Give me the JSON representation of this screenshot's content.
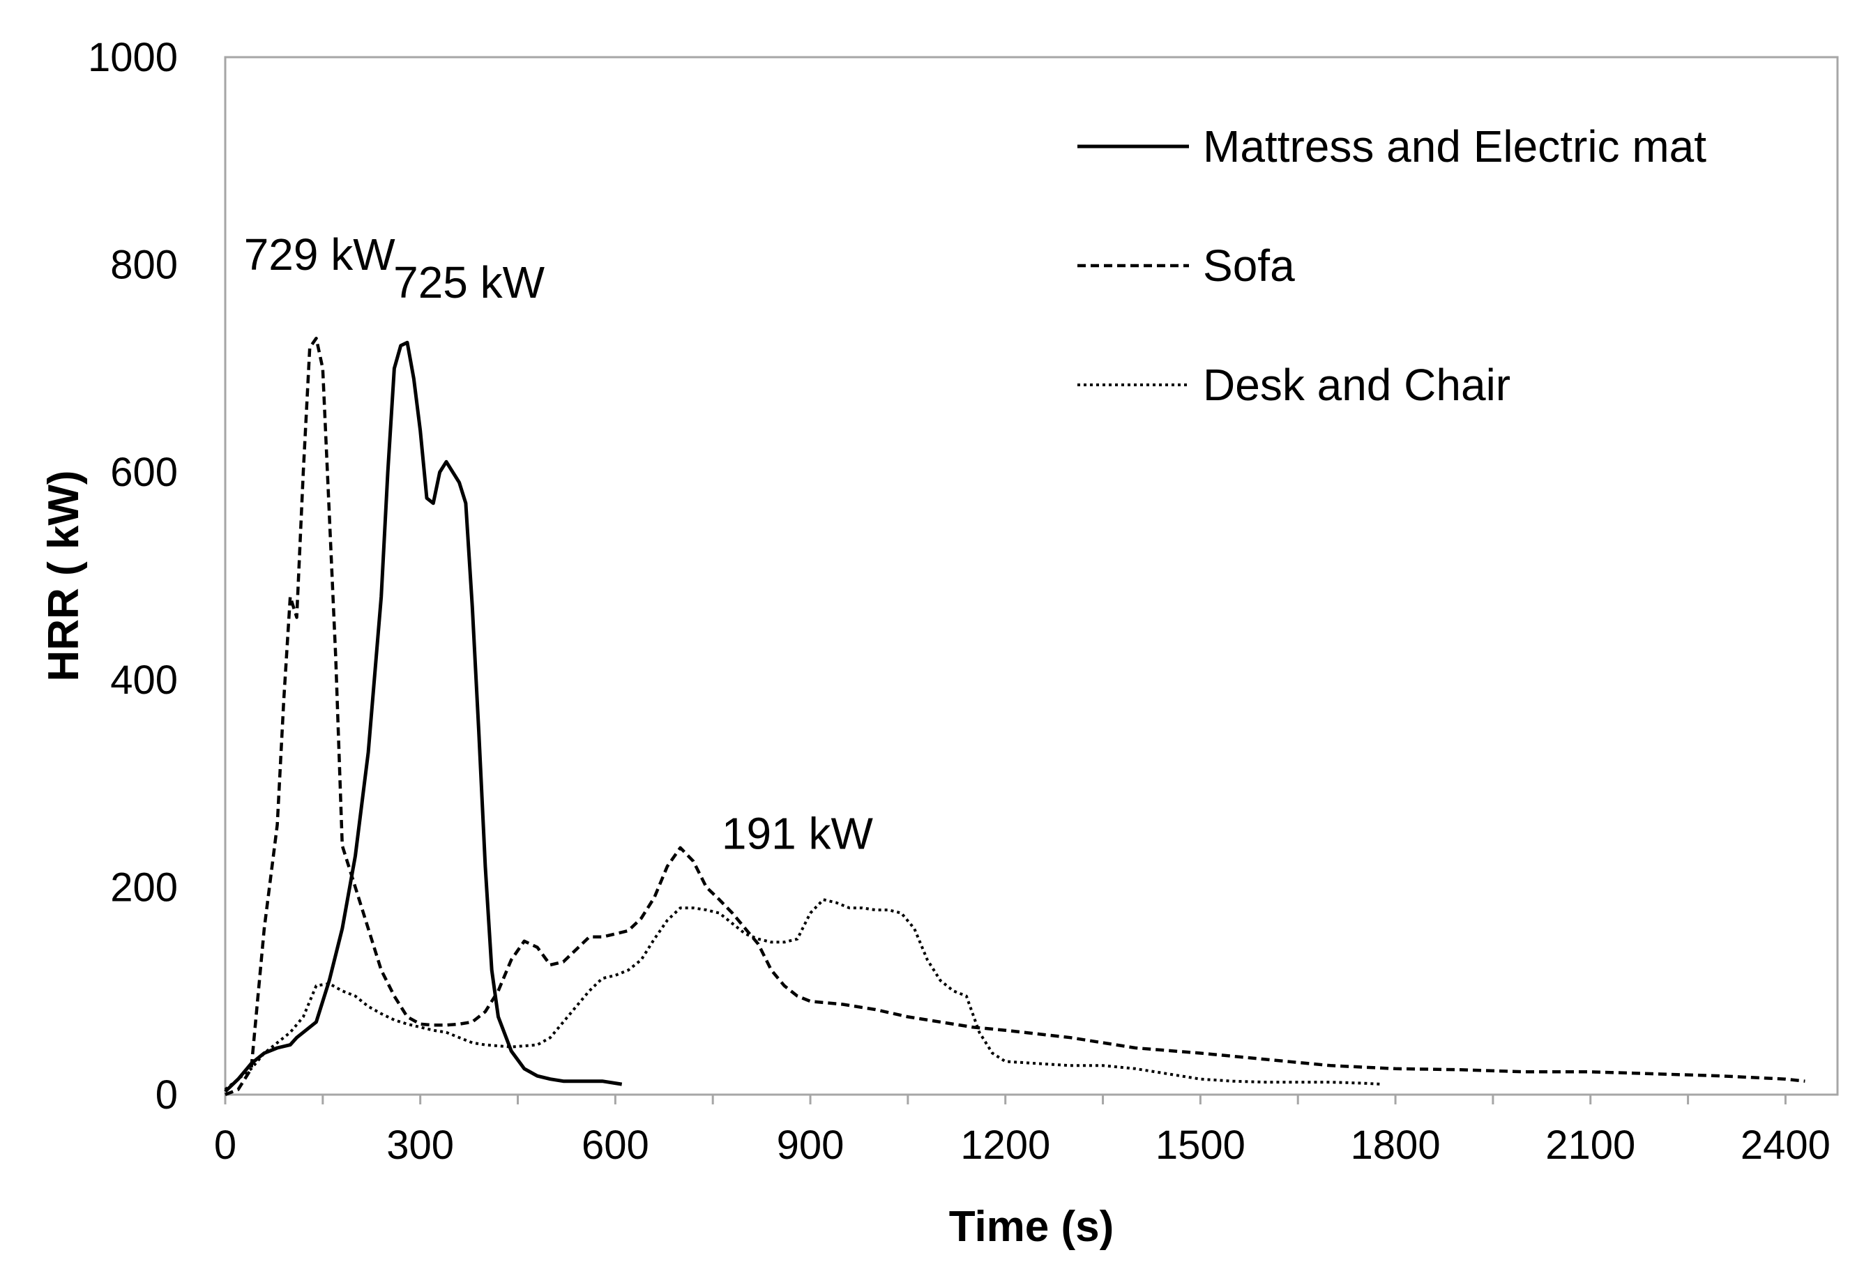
{
  "chart_data": {
    "type": "line",
    "title": "",
    "xlabel": "Time (s)",
    "ylabel": "HRR ( kW)",
    "xlim": [
      0,
      2480
    ],
    "ylim": [
      0,
      1000
    ],
    "xticks": [
      0,
      300,
      600,
      900,
      1200,
      1500,
      1800,
      2100,
      2400
    ],
    "yticks": [
      0,
      200,
      400,
      600,
      800,
      1000
    ],
    "grid": false,
    "legend_position": "top-right",
    "series": [
      {
        "name": "Mattress and Electric mat",
        "style": "solid",
        "x": [
          0,
          20,
          40,
          60,
          80,
          100,
          110,
          120,
          140,
          160,
          180,
          200,
          220,
          240,
          250,
          260,
          270,
          280,
          290,
          300,
          310,
          320,
          330,
          340,
          350,
          360,
          370,
          380,
          390,
          400,
          410,
          420,
          440,
          460,
          480,
          500,
          520,
          540,
          560,
          580,
          600,
          610
        ],
        "y": [
          3,
          15,
          30,
          40,
          45,
          48,
          55,
          60,
          70,
          110,
          160,
          230,
          330,
          480,
          600,
          700,
          722,
          725,
          690,
          640,
          575,
          570,
          600,
          610,
          600,
          590,
          570,
          470,
          350,
          220,
          120,
          75,
          42,
          25,
          18,
          15,
          13,
          13,
          13,
          13,
          11,
          10
        ]
      },
      {
        "name": "Sofa",
        "style": "dashed",
        "x": [
          0,
          20,
          40,
          60,
          80,
          90,
          100,
          110,
          120,
          130,
          140,
          150,
          160,
          170,
          180,
          200,
          220,
          240,
          260,
          280,
          300,
          320,
          340,
          360,
          380,
          400,
          420,
          440,
          460,
          480,
          500,
          520,
          540,
          560,
          580,
          600,
          620,
          640,
          660,
          680,
          700,
          720,
          740,
          760,
          780,
          800,
          820,
          840,
          860,
          880,
          900,
          950,
          1000,
          1050,
          1100,
          1150,
          1200,
          1300,
          1400,
          1500,
          1600,
          1700,
          1800,
          1900,
          2000,
          2100,
          2200,
          2300,
          2400,
          2430
        ],
        "y": [
          0,
          5,
          25,
          160,
          260,
          380,
          480,
          460,
          600,
          720,
          729,
          700,
          560,
          420,
          240,
          200,
          160,
          120,
          95,
          75,
          68,
          67,
          67,
          68,
          70,
          80,
          100,
          130,
          148,
          142,
          125,
          128,
          140,
          152,
          152,
          155,
          158,
          170,
          190,
          220,
          238,
          225,
          200,
          188,
          175,
          160,
          145,
          120,
          105,
          95,
          90,
          87,
          82,
          75,
          70,
          65,
          62,
          55,
          45,
          40,
          34,
          28,
          25,
          24,
          22,
          22,
          20,
          18,
          15,
          13
        ]
      },
      {
        "name": "Desk and Chair",
        "style": "dotted",
        "x": [
          0,
          20,
          40,
          60,
          80,
          100,
          120,
          140,
          160,
          180,
          200,
          220,
          240,
          260,
          280,
          300,
          320,
          340,
          360,
          380,
          400,
          420,
          440,
          460,
          480,
          500,
          520,
          540,
          560,
          580,
          600,
          620,
          640,
          660,
          680,
          700,
          720,
          740,
          760,
          780,
          800,
          820,
          840,
          860,
          880,
          900,
          920,
          940,
          960,
          980,
          1000,
          1020,
          1040,
          1060,
          1080,
          1100,
          1120,
          1140,
          1160,
          1180,
          1200,
          1250,
          1300,
          1350,
          1400,
          1450,
          1500,
          1550,
          1600,
          1650,
          1700,
          1750,
          1780
        ],
        "y": [
          5,
          15,
          25,
          40,
          50,
          60,
          75,
          105,
          107,
          100,
          95,
          85,
          78,
          72,
          68,
          65,
          62,
          60,
          55,
          50,
          48,
          47,
          46,
          47,
          48,
          55,
          70,
          85,
          100,
          112,
          115,
          120,
          130,
          150,
          168,
          180,
          180,
          178,
          175,
          165,
          155,
          150,
          147,
          147,
          150,
          175,
          188,
          185,
          180,
          180,
          178,
          178,
          175,
          160,
          130,
          110,
          100,
          95,
          60,
          40,
          32,
          30,
          28,
          28,
          25,
          20,
          15,
          13,
          12,
          12,
          12,
          11,
          10
        ]
      }
    ],
    "annotations": [
      {
        "text": "729 kW",
        "x": 145,
        "y": 795
      },
      {
        "text": "725 kW",
        "x": 375,
        "y": 768
      },
      {
        "text": "191 kW",
        "x": 880,
        "y": 237
      }
    ]
  }
}
